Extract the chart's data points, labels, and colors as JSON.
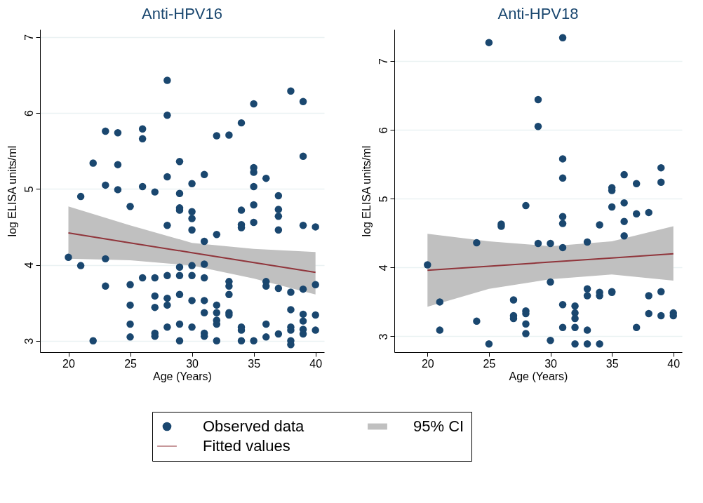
{
  "chart_data": [
    {
      "type": "scatter",
      "title": "Anti-HPV16",
      "xlabel": "Age (Years)",
      "ylabel": "log ELISA units/ml",
      "xlim": [
        17.7,
        40.7
      ],
      "xticks": [
        20,
        25,
        30,
        35,
        40
      ],
      "ylim": [
        2.85,
        7.1
      ],
      "yticks": [
        3,
        4,
        5,
        6,
        7
      ],
      "grid": "y",
      "legend": "bottom",
      "annotations": [
        "95% CI"
      ],
      "series": [
        {
          "name": "Observed data",
          "marker": "circle",
          "color": "#1a476f",
          "x": [
            28,
            38,
            39,
            35,
            28,
            23,
            24,
            26,
            26,
            34,
            32,
            33,
            39,
            22,
            24,
            29,
            28,
            31,
            30,
            35,
            35,
            36,
            23,
            26,
            35,
            24,
            27,
            29,
            37,
            21,
            25,
            29,
            29,
            30,
            30,
            30,
            28,
            34,
            34,
            34,
            35,
            35,
            37,
            37,
            37,
            39,
            40,
            32,
            31,
            20,
            23,
            21,
            29,
            30,
            31,
            26,
            27,
            28,
            29,
            30,
            31,
            33,
            33,
            36,
            36,
            37,
            38,
            39,
            40,
            23,
            25,
            33,
            27,
            28,
            29,
            30,
            31,
            32,
            25,
            27,
            28,
            31,
            32,
            33,
            33,
            38,
            39,
            39,
            40,
            25,
            28,
            29,
            30,
            31,
            31,
            32,
            32,
            34,
            34,
            36,
            37,
            38,
            38,
            39,
            39,
            40,
            25,
            27,
            27,
            22,
            29,
            32,
            34,
            35,
            36,
            38,
            38
          ],
          "values": [
            6.43,
            6.29,
            6.15,
            6.12,
            5.97,
            5.76,
            5.74,
            5.79,
            5.66,
            5.87,
            5.7,
            5.71,
            5.43,
            5.34,
            5.32,
            5.36,
            5.16,
            5.19,
            5.07,
            5.28,
            5.22,
            5.14,
            5.05,
            5.03,
            5.03,
            4.99,
            4.96,
            4.94,
            4.91,
            4.9,
            4.77,
            4.75,
            4.72,
            4.7,
            4.61,
            4.46,
            4.52,
            4.72,
            4.53,
            4.49,
            4.79,
            4.56,
            4.73,
            4.64,
            4.46,
            4.52,
            4.5,
            4.4,
            4.31,
            4.1,
            4.08,
            3.99,
            3.97,
            3.99,
            4.01,
            3.83,
            3.83,
            3.86,
            3.86,
            3.86,
            3.83,
            3.78,
            3.72,
            3.78,
            3.72,
            3.69,
            3.64,
            3.68,
            3.74,
            3.72,
            3.74,
            3.61,
            3.59,
            3.56,
            3.61,
            3.53,
            3.53,
            3.47,
            3.47,
            3.44,
            3.47,
            3.37,
            3.37,
            3.37,
            3.34,
            3.41,
            3.35,
            3.26,
            3.34,
            3.22,
            3.18,
            3.22,
            3.18,
            3.1,
            3.06,
            3.27,
            3.22,
            3.18,
            3.14,
            3.22,
            3.09,
            3.18,
            3.14,
            3.15,
            3.09,
            3.14,
            3.05,
            3.1,
            3.06,
            3.0,
            3.0,
            3.0,
            3.0,
            3.0,
            3.05,
            3.0,
            2.95
          ]
        },
        {
          "name": "Fitted values",
          "type": "line",
          "color": "#90353b",
          "x": [
            20,
            25,
            30,
            35,
            40
          ],
          "values": [
            4.42,
            4.29,
            4.16,
            4.03,
            3.9
          ],
          "lower": [
            4.08,
            4.06,
            3.99,
            3.82,
            3.61
          ],
          "upper": [
            4.77,
            4.52,
            4.29,
            4.21,
            4.17
          ]
        }
      ]
    },
    {
      "type": "scatter",
      "title": "Anti-HPV18",
      "xlabel": "Age (Years)",
      "ylabel": "log ELISA units/ml",
      "xlim": [
        17.3,
        40.7
      ],
      "xticks": [
        20,
        25,
        30,
        35,
        40
      ],
      "ylim": [
        2.77,
        7.46
      ],
      "yticks": [
        3,
        4,
        5,
        6,
        7
      ],
      "grid": "y",
      "series": [
        {
          "name": "Observed data",
          "marker": "circle",
          "color": "#1a476f",
          "x": [
            25,
            31,
            29,
            29,
            31,
            31,
            36,
            39,
            39,
            37,
            35,
            35,
            28,
            35,
            36,
            37,
            38,
            36,
            26,
            26,
            31,
            31,
            34,
            36,
            29,
            30,
            33,
            24,
            31,
            20,
            30,
            33,
            33,
            34,
            34,
            35,
            35,
            39,
            38,
            27,
            21,
            31,
            32,
            32,
            32,
            27,
            27,
            28,
            28,
            28,
            28,
            24,
            21,
            31,
            32,
            33,
            37,
            38,
            39,
            40,
            40,
            25,
            30,
            32,
            33,
            34
          ],
          "values": [
            7.27,
            7.34,
            6.44,
            6.05,
            5.58,
            5.3,
            5.35,
            5.45,
            5.24,
            5.22,
            5.16,
            5.12,
            4.9,
            4.88,
            4.94,
            4.78,
            4.8,
            4.67,
            4.63,
            4.6,
            4.74,
            4.64,
            4.62,
            4.46,
            4.35,
            4.35,
            4.37,
            4.36,
            4.29,
            4.04,
            3.79,
            3.69,
            3.59,
            3.64,
            3.59,
            3.65,
            3.64,
            3.65,
            3.59,
            3.53,
            3.5,
            3.46,
            3.44,
            3.34,
            3.26,
            3.3,
            3.26,
            3.37,
            3.33,
            3.18,
            3.04,
            3.22,
            3.09,
            3.13,
            3.13,
            3.09,
            3.13,
            3.33,
            3.3,
            3.34,
            3.3,
            2.89,
            2.94,
            2.89,
            2.89,
            2.89
          ]
        },
        {
          "name": "Fitted values",
          "type": "line",
          "color": "#90353b",
          "x": [
            20,
            25,
            30,
            35,
            40
          ],
          "values": [
            3.96,
            4.02,
            4.08,
            4.14,
            4.2
          ],
          "lower": [
            3.43,
            3.69,
            3.83,
            3.9,
            3.81
          ],
          "upper": [
            4.49,
            4.38,
            4.31,
            4.38,
            4.6
          ]
        }
      ]
    }
  ]
}
